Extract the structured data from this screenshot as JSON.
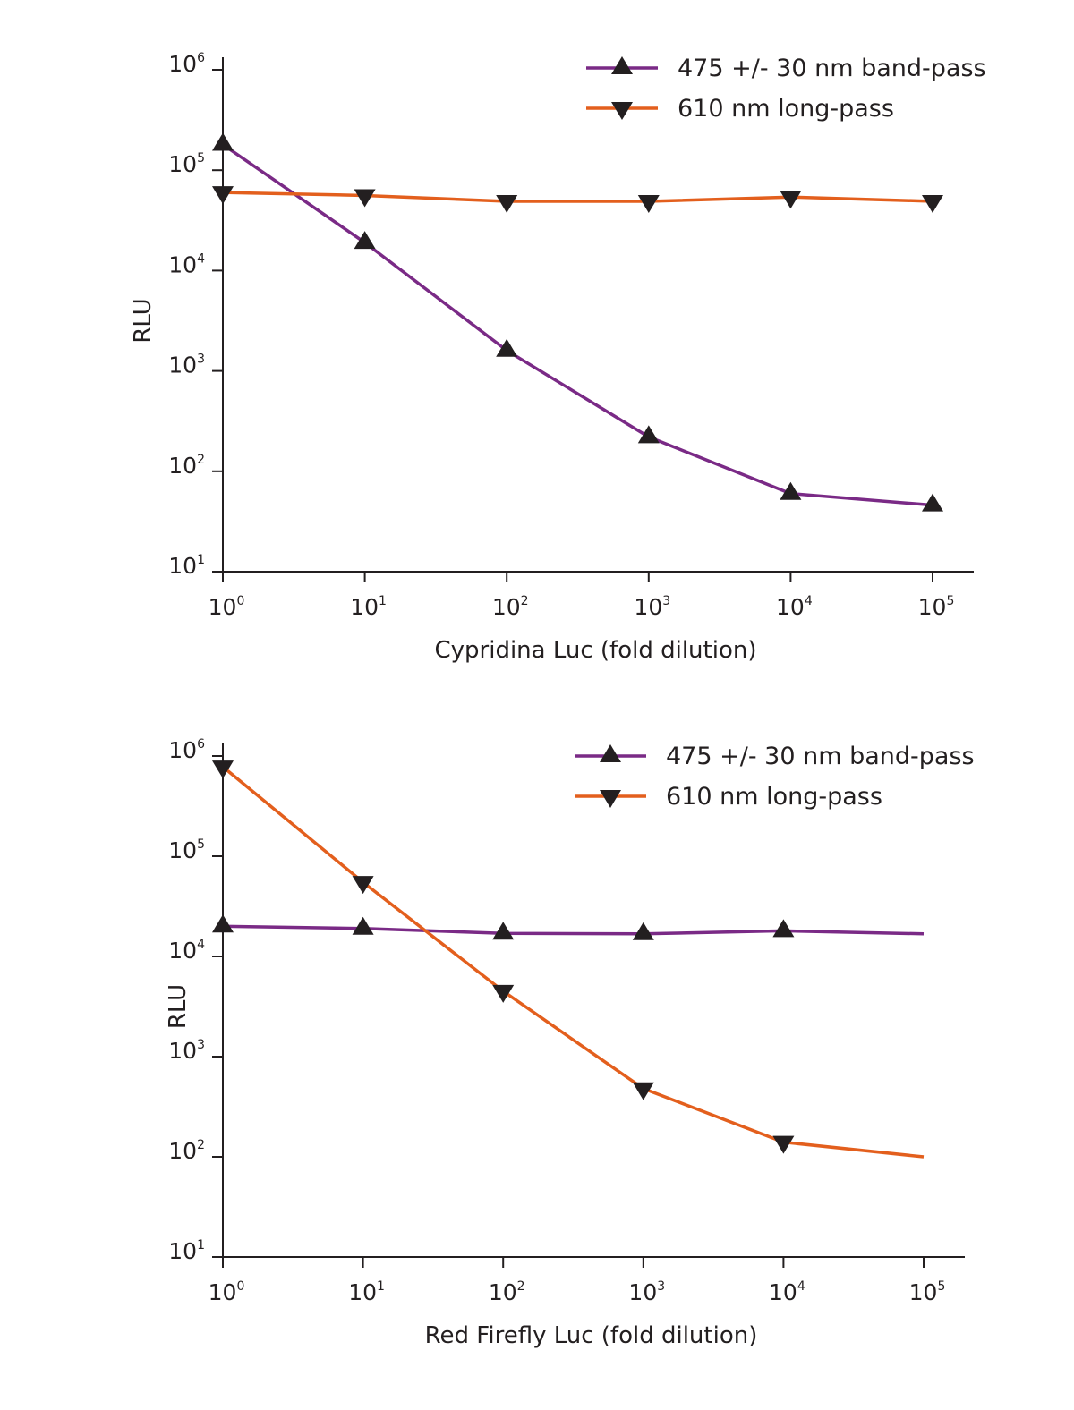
{
  "colors": {
    "series_475": "#7a2a86",
    "series_610": "#e35f1d",
    "markers": "#231f20",
    "axes": "#231f20"
  },
  "chart_data": [
    {
      "type": "line",
      "xlabel": "Cypridina Luc (fold dilution)",
      "ylabel": "RLU",
      "xscale": "log",
      "yscale": "log",
      "x": [
        1,
        10,
        100,
        1000,
        10000,
        100000
      ],
      "xlim": [
        1,
        200000
      ],
      "ylim": [
        10,
        1000000
      ],
      "x_ticks": [
        {
          "base": "10",
          "exp": "0",
          "value": 1
        },
        {
          "base": "10",
          "exp": "1",
          "value": 10
        },
        {
          "base": "10",
          "exp": "2",
          "value": 100
        },
        {
          "base": "10",
          "exp": "3",
          "value": 1000
        },
        {
          "base": "10",
          "exp": "4",
          "value": 10000
        },
        {
          "base": "10",
          "exp": "5",
          "value": 100000
        }
      ],
      "y_ticks": [
        {
          "base": "10",
          "exp": "1",
          "value": 10
        },
        {
          "base": "10",
          "exp": "2",
          "value": 100
        },
        {
          "base": "10",
          "exp": "3",
          "value": 1000
        },
        {
          "base": "10",
          "exp": "4",
          "value": 10000
        },
        {
          "base": "10",
          "exp": "5",
          "value": 100000
        },
        {
          "base": "10",
          "exp": "6",
          "value": 1000000
        }
      ],
      "legend_position": "top-right",
      "grid": false,
      "series": [
        {
          "name": "475 +/- 30 nm band-pass",
          "marker": "triangle-up",
          "color": "#7a2a86",
          "values": [
            180000,
            19000,
            1600,
            220,
            60,
            46
          ]
        },
        {
          "name": "610 nm long-pass",
          "marker": "triangle-down",
          "color": "#e35f1d",
          "values": [
            60000,
            56000,
            49000,
            49000,
            54000,
            49000
          ]
        }
      ]
    },
    {
      "type": "line",
      "xlabel": "Red Firefly Luc (fold dilution)",
      "ylabel": "RLU",
      "xscale": "log",
      "yscale": "log",
      "x": [
        1,
        10,
        100,
        1000,
        10000,
        100000
      ],
      "xlim": [
        1,
        200000
      ],
      "ylim": [
        10,
        1000000
      ],
      "x_ticks": [
        {
          "base": "10",
          "exp": "0",
          "value": 1
        },
        {
          "base": "10",
          "exp": "1",
          "value": 10
        },
        {
          "base": "10",
          "exp": "2",
          "value": 100
        },
        {
          "base": "10",
          "exp": "3",
          "value": 1000
        },
        {
          "base": "10",
          "exp": "4",
          "value": 10000
        },
        {
          "base": "10",
          "exp": "5",
          "value": 100000
        }
      ],
      "y_ticks": [
        {
          "base": "10",
          "exp": "1",
          "value": 10
        },
        {
          "base": "10",
          "exp": "2",
          "value": 100
        },
        {
          "base": "10",
          "exp": "3",
          "value": 1000
        },
        {
          "base": "10",
          "exp": "4",
          "value": 10000
        },
        {
          "base": "10",
          "exp": "5",
          "value": 100000
        },
        {
          "base": "10",
          "exp": "6",
          "value": 1000000
        }
      ],
      "legend_position": "top-right",
      "grid": false,
      "series": [
        {
          "name": "475 +/- 30 nm band-pass",
          "marker": "triangle-up",
          "color": "#7a2a86",
          "values": [
            20000,
            19000,
            17000,
            16800,
            18000,
            16800
          ]
        },
        {
          "name": "610 nm long-pass",
          "marker": "triangle-down",
          "color": "#e35f1d",
          "values": [
            780000,
            55000,
            4500,
            480,
            140,
            100
          ]
        }
      ]
    }
  ]
}
